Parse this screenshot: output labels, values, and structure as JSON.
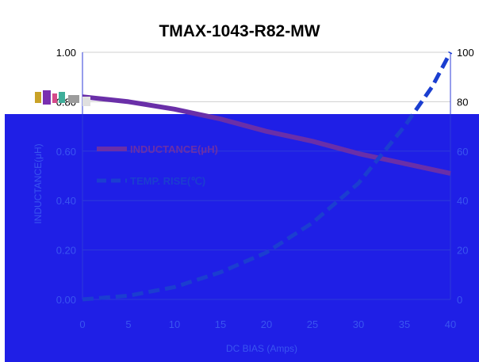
{
  "colors": {
    "overlay": "#1f1fe6",
    "inductance": "#6a2fa8",
    "temp_rise": "#1b3ed0",
    "tick_dark": "#000000",
    "tick_on_overlay": "#3a55f0",
    "gridline": "#2e3bd8",
    "grid_top": "#cfcfcf"
  },
  "chart_data": {
    "type": "line",
    "title": "TMAX-1043-R82-MW",
    "xlabel": "DC BIAS  (Amps)",
    "ylabel": "INDUCTANCE(μH)",
    "y2label": "",
    "xlim": [
      0,
      40
    ],
    "ylim": [
      0,
      1.0
    ],
    "y2lim": [
      0,
      100
    ],
    "x_ticks": [
      "0",
      "5",
      "10",
      "15",
      "20",
      "25",
      "30",
      "35",
      "40"
    ],
    "y_ticks": [
      "0.00",
      "0.20",
      "0.40",
      "0.60",
      "0.80",
      "1.00"
    ],
    "y2_ticks": [
      "0",
      "20",
      "40",
      "60",
      "80",
      "100"
    ],
    "grid": true,
    "legend_position": "top-left",
    "series": [
      {
        "name": "INDUCTANCE(μH)",
        "axis": "left",
        "style": "solid",
        "x": [
          0,
          5,
          10,
          15,
          20,
          25,
          30,
          35,
          40
        ],
        "values": [
          0.82,
          0.8,
          0.77,
          0.73,
          0.68,
          0.64,
          0.59,
          0.55,
          0.51
        ]
      },
      {
        "name": "TEMP. RISE(℃)",
        "axis": "right",
        "style": "dashed",
        "x": [
          0,
          5,
          10,
          15,
          20,
          25,
          30,
          35,
          38,
          40
        ],
        "values": [
          0,
          1.5,
          5,
          11,
          19,
          31,
          47,
          70,
          86,
          100
        ]
      }
    ]
  }
}
